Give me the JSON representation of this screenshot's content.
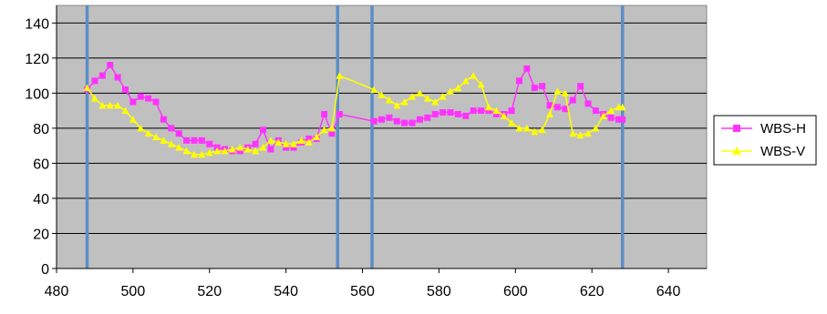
{
  "chart_data": {
    "type": "scatter",
    "title": "",
    "xlabel": "",
    "ylabel": "",
    "xlim": [
      480,
      650
    ],
    "ylim": [
      0,
      150
    ],
    "x_ticks": [
      480,
      500,
      520,
      540,
      560,
      580,
      600,
      620,
      640
    ],
    "y_ticks": [
      0,
      20,
      40,
      60,
      80,
      100,
      120,
      140
    ],
    "grid": "horizontal",
    "legend_position": "right",
    "plot_background": "#c0c0c0",
    "vertical_markers": {
      "x": [
        488,
        553.5,
        562.5,
        628
      ],
      "color": "#5b8ec7"
    },
    "series": [
      {
        "name": "WBS-H",
        "color": "#ff33ff",
        "marker": "square",
        "points": [
          [
            488,
            102
          ],
          [
            490,
            107
          ],
          [
            492,
            110
          ],
          [
            494,
            116
          ],
          [
            496,
            109
          ],
          [
            498,
            102
          ],
          [
            500,
            95
          ],
          [
            502,
            98
          ],
          [
            504,
            97
          ],
          [
            506,
            95
          ],
          [
            508,
            85
          ],
          [
            510,
            80
          ],
          [
            512,
            77
          ],
          [
            514,
            73
          ],
          [
            516,
            73
          ],
          [
            518,
            73
          ],
          [
            520,
            71
          ],
          [
            522,
            69
          ],
          [
            524,
            68
          ],
          [
            526,
            67
          ],
          [
            528,
            67
          ],
          [
            530,
            69
          ],
          [
            532,
            71
          ],
          [
            534,
            79
          ],
          [
            536,
            68
          ],
          [
            538,
            73
          ],
          [
            540,
            69
          ],
          [
            542,
            69
          ],
          [
            544,
            72
          ],
          [
            546,
            74
          ],
          [
            548,
            74
          ],
          [
            550,
            88
          ],
          [
            552,
            77
          ],
          [
            554,
            88
          ],
          [
            563,
            84
          ],
          [
            565,
            85
          ],
          [
            567,
            86
          ],
          [
            569,
            84
          ],
          [
            571,
            83
          ],
          [
            573,
            83
          ],
          [
            575,
            85
          ],
          [
            577,
            86
          ],
          [
            579,
            88
          ],
          [
            581,
            89
          ],
          [
            583,
            89
          ],
          [
            585,
            88
          ],
          [
            587,
            87
          ],
          [
            589,
            90
          ],
          [
            591,
            90
          ],
          [
            593,
            90
          ],
          [
            595,
            88
          ],
          [
            597,
            88
          ],
          [
            599,
            90
          ],
          [
            601,
            107
          ],
          [
            603,
            114
          ],
          [
            605,
            103
          ],
          [
            607,
            104
          ],
          [
            609,
            93
          ],
          [
            611,
            92
          ],
          [
            613,
            91
          ],
          [
            615,
            96
          ],
          [
            617,
            104
          ],
          [
            619,
            94
          ],
          [
            621,
            90
          ],
          [
            623,
            88
          ],
          [
            625,
            86
          ],
          [
            627,
            85
          ],
          [
            628,
            85
          ]
        ]
      },
      {
        "name": "WBS-V",
        "color": "#ffff00",
        "marker": "triangle",
        "points": [
          [
            488,
            103
          ],
          [
            490,
            97
          ],
          [
            492,
            93
          ],
          [
            494,
            93
          ],
          [
            496,
            93
          ],
          [
            498,
            90
          ],
          [
            500,
            85
          ],
          [
            502,
            80
          ],
          [
            504,
            77
          ],
          [
            506,
            75
          ],
          [
            508,
            73
          ],
          [
            510,
            71
          ],
          [
            512,
            69
          ],
          [
            514,
            67
          ],
          [
            516,
            65
          ],
          [
            518,
            65
          ],
          [
            520,
            66
          ],
          [
            522,
            67
          ],
          [
            524,
            67
          ],
          [
            526,
            68
          ],
          [
            528,
            69
          ],
          [
            530,
            68
          ],
          [
            532,
            67
          ],
          [
            534,
            69
          ],
          [
            536,
            73
          ],
          [
            538,
            72
          ],
          [
            540,
            71
          ],
          [
            542,
            71
          ],
          [
            544,
            73
          ],
          [
            546,
            72
          ],
          [
            548,
            75
          ],
          [
            550,
            79
          ],
          [
            552,
            80
          ],
          [
            554,
            110
          ],
          [
            563,
            102
          ],
          [
            565,
            99
          ],
          [
            567,
            96
          ],
          [
            569,
            93
          ],
          [
            571,
            95
          ],
          [
            573,
            98
          ],
          [
            575,
            100
          ],
          [
            577,
            97
          ],
          [
            579,
            95
          ],
          [
            581,
            98
          ],
          [
            583,
            101
          ],
          [
            585,
            103
          ],
          [
            587,
            107
          ],
          [
            589,
            110
          ],
          [
            591,
            105
          ],
          [
            593,
            92
          ],
          [
            595,
            90
          ],
          [
            597,
            87
          ],
          [
            599,
            83
          ],
          [
            601,
            80
          ],
          [
            603,
            80
          ],
          [
            605,
            78
          ],
          [
            607,
            79
          ],
          [
            609,
            88
          ],
          [
            611,
            101
          ],
          [
            613,
            100
          ],
          [
            615,
            77
          ],
          [
            617,
            76
          ],
          [
            619,
            77
          ],
          [
            621,
            80
          ],
          [
            623,
            87
          ],
          [
            625,
            90
          ],
          [
            627,
            92
          ],
          [
            628,
            92
          ]
        ]
      }
    ]
  }
}
